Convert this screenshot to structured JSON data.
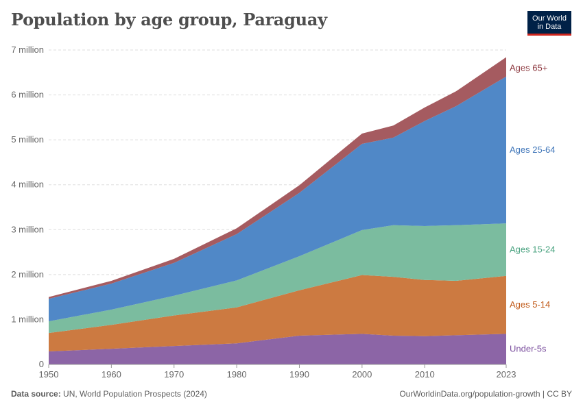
{
  "header": {
    "title": "Population by age group, Paraguay",
    "logo_line1": "Our World",
    "logo_line2": "in Data"
  },
  "footer": {
    "source_label": "Data source:",
    "source_text": "UN, World Population Prospects (2024)",
    "url_license": "OurWorldinData.org/population-growth | CC BY"
  },
  "chart_data": {
    "type": "area",
    "stacked": true,
    "title": "Population by age group, Paraguay",
    "xlabel": "",
    "ylabel": "",
    "xlim": [
      1950,
      2023
    ],
    "ylim": [
      0,
      7000000
    ],
    "x_ticks": [
      1950,
      1960,
      1970,
      1980,
      1990,
      2000,
      2010,
      2023
    ],
    "y_ticks": [
      {
        "value": 0,
        "label": "0"
      },
      {
        "value": 1000000,
        "label": "1 million"
      },
      {
        "value": 2000000,
        "label": "2 million"
      },
      {
        "value": 3000000,
        "label": "3 million"
      },
      {
        "value": 4000000,
        "label": "4 million"
      },
      {
        "value": 5000000,
        "label": "5 million"
      },
      {
        "value": 6000000,
        "label": "6 million"
      },
      {
        "value": 7000000,
        "label": "7 million"
      }
    ],
    "grid": "horizontal dashed",
    "legend": "inline-right",
    "x": [
      1950,
      1960,
      1970,
      1980,
      1990,
      2000,
      2005,
      2010,
      2015,
      2023
    ],
    "series": [
      {
        "name": "Under-5s",
        "color": "#8c65a6",
        "values": [
          290000,
          350000,
          410000,
          470000,
          640000,
          680000,
          640000,
          630000,
          650000,
          680000
        ]
      },
      {
        "name": "Ages 5-14",
        "color": "#cc7a41",
        "values": [
          410000,
          530000,
          680000,
          800000,
          1010000,
          1310000,
          1310000,
          1250000,
          1210000,
          1290000
        ]
      },
      {
        "name": "Ages 15-24",
        "color": "#7bbc9f",
        "values": [
          260000,
          340000,
          440000,
          600000,
          760000,
          1000000,
          1150000,
          1200000,
          1240000,
          1170000
        ]
      },
      {
        "name": "Ages 25-64",
        "color": "#5088c7",
        "values": [
          500000,
          580000,
          730000,
          1030000,
          1410000,
          1920000,
          1950000,
          2340000,
          2650000,
          3270000
        ]
      },
      {
        "name": "Ages 65+",
        "color": "#a55b60",
        "values": [
          40000,
          60000,
          90000,
          130000,
          170000,
          230000,
          270000,
          300000,
          330000,
          430000
        ]
      }
    ]
  }
}
